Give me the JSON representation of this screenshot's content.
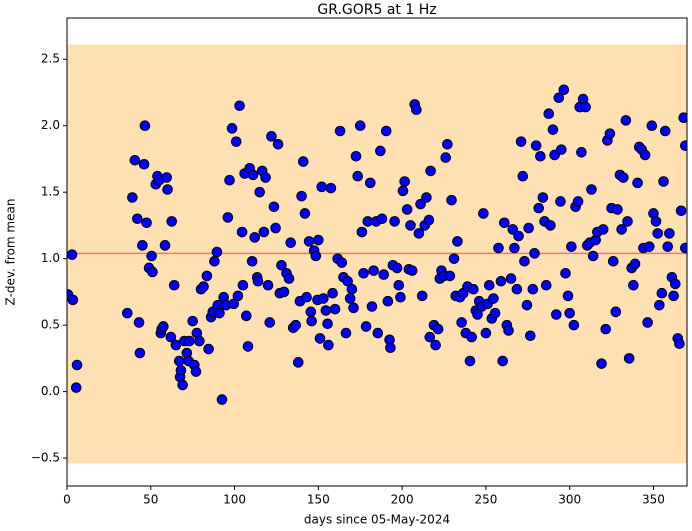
{
  "chart_data": {
    "type": "scatter",
    "title": "GR.GOR5 at 1 Hz",
    "x_label": "days since 05-May-2024",
    "y_label": "Z-dev. from mean",
    "xlim": [
      0,
      370
    ],
    "ylim": [
      -0.71,
      2.81
    ],
    "xticks": [
      0,
      50,
      100,
      150,
      200,
      250,
      300,
      350
    ],
    "yticks": [
      {
        "value": -0.5,
        "label": "−0.5"
      },
      {
        "value": 0,
        "label": "0.0"
      },
      {
        "value": 0.5,
        "label": "0.5"
      },
      {
        "value": 1,
        "label": "1.0"
      },
      {
        "value": 1.5,
        "label": "1.5"
      },
      {
        "value": 2,
        "label": "2.0"
      },
      {
        "value": 2.5,
        "label": "2.5"
      }
    ],
    "band": [
      -0.54,
      2.61
    ],
    "band_color": "#ffe0b2",
    "mean_line": 1.04,
    "mean_line_color": "#f07a6a",
    "marker_color": "#0000ff",
    "x": [
      0.6,
      3.5,
      3,
      6,
      5.5,
      36,
      39,
      40.5,
      42,
      43,
      43.5,
      45,
      46,
      46.5,
      47.5,
      49,
      50.5,
      51,
      53,
      54,
      55,
      56,
      56.5,
      57.5,
      58.5,
      59.5,
      60,
      62,
      62.5,
      64,
      65,
      67,
      67.5,
      68,
      69,
      70,
      71.5,
      72.5,
      73,
      75,
      76,
      77,
      77.5,
      79,
      80,
      81.5,
      83.5,
      84.5,
      86,
      87,
      88,
      89.5,
      90,
      91,
      92.5,
      93.5,
      95,
      96,
      97,
      98.5,
      99.5,
      101,
      102,
      103,
      104.5,
      105,
      106,
      107,
      108,
      109,
      110.5,
      111,
      112,
      113.5,
      114,
      115,
      116.5,
      117.5,
      118.5,
      120,
      121,
      122,
      123.5,
      124.5,
      126,
      127,
      128,
      129.5,
      131,
      132.5,
      133.5,
      135,
      136.5,
      138,
      139,
      140,
      141,
      142,
      143,
      144.5,
      145.5,
      146,
      147.5,
      148.5,
      149.5,
      150,
      151,
      152,
      153,
      154.5,
      155.5,
      156,
      157.5,
      158.5,
      160,
      161.5,
      163,
      164,
      165,
      166.5,
      167.5,
      169,
      170,
      171,
      172.5,
      173.5,
      175,
      176,
      177,
      178.5,
      179.5,
      181,
      182,
      183,
      184.5,
      185.5,
      187,
      188,
      189,
      190.5,
      191.5,
      192.5,
      193,
      194.5,
      195.5,
      197,
      198,
      199,
      200.5,
      201.5,
      203,
      204,
      205,
      206,
      207.5,
      208.5,
      210,
      211,
      212,
      213.5,
      214.5,
      216,
      217,
      216.5,
      219,
      220,
      221.5,
      222.5,
      223.5,
      225,
      226,
      227,
      228.5,
      229.5,
      231,
      232,
      233,
      234.5,
      235.5,
      236.5,
      238,
      239,
      240.5,
      241.5,
      242.5,
      244,
      245,
      246,
      247.5,
      248.5,
      250,
      251,
      252,
      253.5,
      254.5,
      255.5,
      257.5,
      259,
      260,
      261,
      262.5,
      263.5,
      265,
      266,
      267,
      268.5,
      269.5,
      271,
      272,
      273,
      274.5,
      275.5,
      276.5,
      278,
      279,
      280,
      281.5,
      282.5,
      284,
      285,
      286,
      287.5,
      288.5,
      290,
      291,
      292,
      293.5,
      294.5,
      295,
      296.5,
      297.5,
      299,
      300,
      301,
      302.5,
      303.5,
      305,
      306,
      307,
      308,
      309.5,
      310.5,
      312,
      313,
      314,
      315.5,
      316.5,
      319,
      320,
      321.5,
      322.5,
      324,
      325,
      326,
      327.5,
      328.5,
      330,
      331,
      332,
      333.5,
      334.5,
      335.5,
      337,
      338,
      339,
      340.5,
      341.5,
      343,
      344,
      345,
      346.5,
      347.5,
      349,
      350,
      351.5,
      352.5,
      353.5,
      355,
      356,
      357,
      358.5,
      359.5,
      361,
      362,
      363,
      364.5,
      365.5,
      366.5,
      368,
      369,
      369
    ],
    "values": [
      0.73,
      0.69,
      1.03,
      0.2,
      0.03,
      0.59,
      1.46,
      1.74,
      1.3,
      0.52,
      0.29,
      1.1,
      1.71,
      2.0,
      1.27,
      0.93,
      1.02,
      0.9,
      1.56,
      1.62,
      1.59,
      0.44,
      0.47,
      0.49,
      1.1,
      1.61,
      1.52,
      0.41,
      1.28,
      0.8,
      0.35,
      0.23,
      0.11,
      0.16,
      0.05,
      0.38,
      0.29,
      0.23,
      0.38,
      0.53,
      0.2,
      0.15,
      0.44,
      0.38,
      0.77,
      0.79,
      0.87,
      0.32,
      0.56,
      0.6,
      0.98,
      1.05,
      0.65,
      0.59,
      -0.06,
      0.71,
      0.65,
      1.31,
      1.59,
      1.98,
      0.66,
      1.88,
      0.72,
      2.15,
      1.2,
      0.8,
      1.64,
      0.57,
      0.34,
      1.68,
      0.98,
      1.63,
      1.16,
      0.86,
      0.83,
      1.5,
      1.66,
      1.2,
      1.61,
      0.8,
      0.52,
      1.92,
      1.39,
      1.23,
      1.86,
      0.74,
      0.95,
      0.75,
      0.89,
      0.85,
      1.12,
      0.48,
      0.5,
      0.22,
      0.68,
      1.47,
      1.73,
      1.34,
      0.71,
      1.13,
      0.6,
      0.53,
      1.06,
      1.02,
      0.69,
      1.14,
      0.4,
      1.54,
      0.7,
      0.61,
      0.51,
      0.35,
      1.53,
      0.74,
      0.62,
      1.0,
      1.96,
      0.97,
      0.86,
      0.44,
      0.83,
      0.7,
      0.77,
      0.63,
      1.77,
      1.62,
      2.0,
      1.2,
      0.89,
      0.49,
      1.28,
      1.57,
      0.64,
      0.91,
      1.28,
      0.44,
      1.81,
      1.3,
      0.88,
      1.96,
      0.68,
      0.39,
      0.33,
      0.95,
      1.28,
      0.93,
      0.8,
      0.71,
      1.51,
      1.58,
      1.37,
      0.92,
      1.25,
      0.91,
      2.16,
      2.12,
      1.19,
      1.41,
      0.72,
      1.25,
      1.46,
      1.29,
      1.66,
      0.41,
      0.5,
      0.35,
      0.47,
      0.85,
      0.91,
      0.87,
      1.76,
      1.86,
      0.87,
      1.44,
      1.0,
      0.72,
      1.13,
      0.71,
      0.52,
      0.74,
      0.44,
      0.79,
      0.23,
      0.41,
      0.77,
      0.61,
      0.58,
      0.68,
      0.64,
      1.34,
      0.44,
      0.66,
      0.8,
      0.55,
      0.7,
      0.59,
      1.08,
      0.83,
      0.23,
      1.27,
      0.5,
      0.46,
      0.85,
      1.22,
      1.08,
      0.77,
      1.17,
      1.88,
      1.62,
      0.98,
      0.65,
      1.23,
      0.42,
      0.77,
      1.04,
      1.85,
      1.38,
      1.77,
      1.46,
      1.28,
      0.8,
      2.09,
      1.25,
      1.97,
      1.78,
      0.58,
      2.21,
      1.43,
      1.82,
      2.27,
      0.89,
      0.72,
      0.59,
      1.09,
      0.5,
      1.39,
      1.43,
      2.14,
      1.8,
      2.2,
      2.14,
      1.1,
      1.12,
      1.52,
      1.02,
      1.14,
      1.2,
      0.21,
      1.22,
      0.47,
      1.89,
      1.94,
      1.38,
      0.98,
      0.6,
      1.37,
      1.63,
      1.22,
      1.61,
      2.04,
      1.28,
      0.25,
      0.93,
      0.8,
      0.96,
      1.57,
      1.84,
      1.82,
      1.08,
      1.78,
      0.52,
      1.09,
      2.0,
      1.34,
      1.28,
      1.19,
      0.65,
      0.74,
      1.58,
      1.96,
      1.09,
      1.19,
      0.86,
      0.72,
      0.81,
      0.4,
      0.36,
      1.36,
      2.06,
      1.08,
      1.85
    ]
  }
}
